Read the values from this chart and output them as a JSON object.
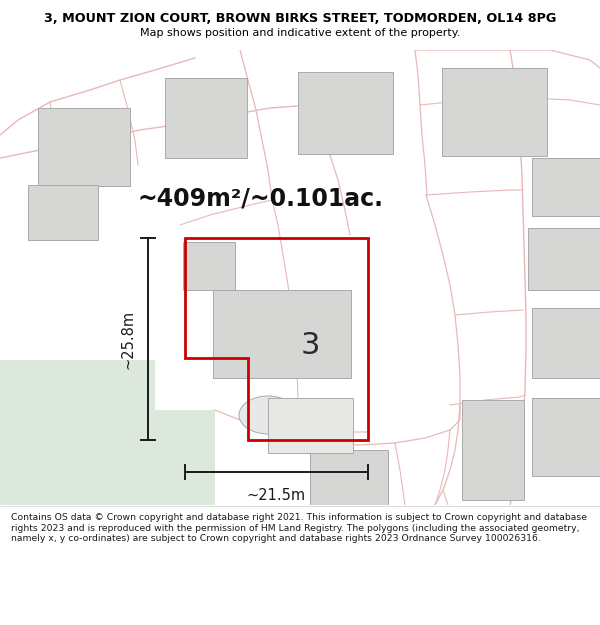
{
  "title_line1": "3, MOUNT ZION COURT, BROWN BIRKS STREET, TODMORDEN, OL14 8PG",
  "title_line2": "Map shows position and indicative extent of the property.",
  "area_text": "~409m²/~0.101ac.",
  "property_number": "3",
  "dim_width": "~21.5m",
  "dim_height": "~25.8m",
  "footer_text": "Contains OS data © Crown copyright and database right 2021. This information is subject to Crown copyright and database rights 2023 and is reproduced with the permission of HM Land Registry. The polygons (including the associated geometry, namely x, y co-ordinates) are subject to Crown copyright and database rights 2023 Ordnance Survey 100026316.",
  "map_bg": "#f7f7f5",
  "green_fill": "#dce8dc",
  "bldg_fill": "#d6d6d4",
  "bldg_edge": "#aaaaaa",
  "road_pink": "#e8b8b8",
  "prop_red": "#cc0000",
  "dim_black": "#1a1a1a",
  "title_bg": "#ffffff",
  "footer_bg": "#ffffff",
  "sep_color": "#cccccc"
}
